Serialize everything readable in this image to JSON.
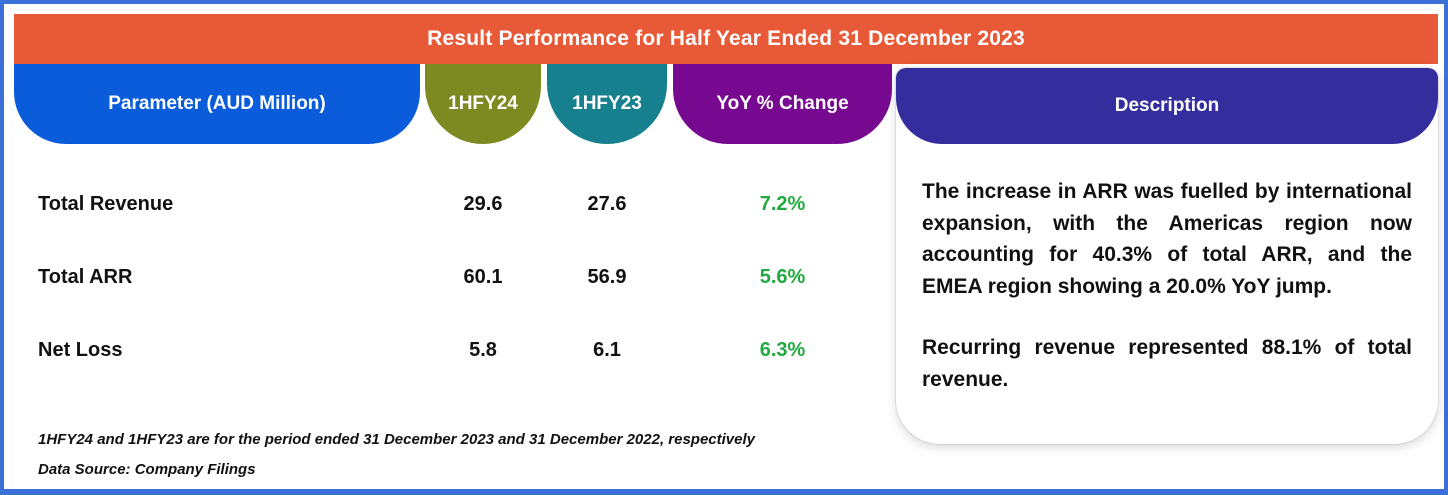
{
  "banner": {
    "title": "Result Performance for Half Year Ended 31 December 2023"
  },
  "table": {
    "columns": [
      {
        "label": "Parameter (AUD Million)",
        "color": "#0B5CDB"
      },
      {
        "label": "1HFY24",
        "color": "#7C8A21"
      },
      {
        "label": "1HFY23",
        "color": "#17808F"
      },
      {
        "label": "YoY % Change",
        "color": "#76098F"
      }
    ],
    "rows": [
      {
        "parameter": "Total Revenue",
        "hfy24": "29.6",
        "hfy23": "27.6",
        "yoy": "7.2%"
      },
      {
        "parameter": "Total ARR",
        "hfy24": "60.1",
        "hfy23": "56.9",
        "yoy": "5.6%"
      },
      {
        "parameter": "Net Loss",
        "hfy24": "5.8",
        "hfy23": "6.1",
        "yoy": "6.3%"
      }
    ]
  },
  "description": {
    "header": "Description",
    "header_color": "#332D9E",
    "paragraphs": [
      "The increase in ARR was fuelled by international expansion, with the Americas region now accounting for 40.3% of total ARR, and the EMEA region showing a 20.0% YoY jump.",
      "Recurring revenue represented 88.1% of total revenue."
    ]
  },
  "footnotes": [
    "1HFY24 and 1HFY23 are for the period ended 31 December 2023 and 31 December 2022, respectively",
    "Data Source: Company Filings"
  ],
  "colors": {
    "frame_border": "#3B70D8",
    "banner_orange": "#E85938",
    "yoy_green": "#22A93F",
    "text": "#111111"
  }
}
